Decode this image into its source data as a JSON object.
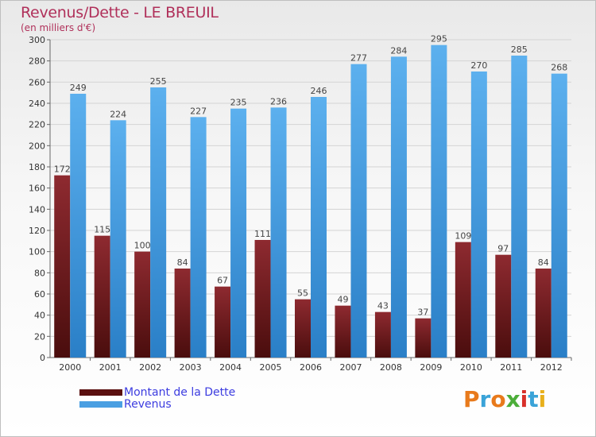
{
  "header": {
    "title": "Revenus/Dette - LE BREUIL",
    "subtitle": "(en milliers d'€)"
  },
  "colors": {
    "title": "#b0305a",
    "dette": "#7a1f25",
    "revenus": "#4a9fe2",
    "legend_text": "#3c3ce0"
  },
  "legend": {
    "items": [
      {
        "label": "Montant de la Dette",
        "color": "#5a0f0f"
      },
      {
        "label": "Revenus",
        "color": "#4a9fe2"
      }
    ]
  },
  "logo": {
    "text": "Proxiti"
  },
  "chart_data": {
    "type": "bar",
    "title": "Revenus/Dette - LE BREUIL",
    "subtitle": "(en milliers d'€)",
    "categories": [
      "2000",
      "2001",
      "2002",
      "2003",
      "2004",
      "2005",
      "2006",
      "2007",
      "2008",
      "2009",
      "2010",
      "2011",
      "2012"
    ],
    "series": [
      {
        "name": "Montant de la Dette",
        "values": [
          172,
          115,
          100,
          84,
          67,
          111,
          55,
          49,
          43,
          37,
          109,
          97,
          84
        ]
      },
      {
        "name": "Revenus",
        "values": [
          249,
          224,
          255,
          227,
          235,
          236,
          246,
          277,
          284,
          295,
          270,
          285,
          268
        ]
      }
    ],
    "ylim": [
      0,
      300
    ],
    "ytick_step": 20,
    "grid": true,
    "legend_position": "bottom-left",
    "data_labels": true
  }
}
